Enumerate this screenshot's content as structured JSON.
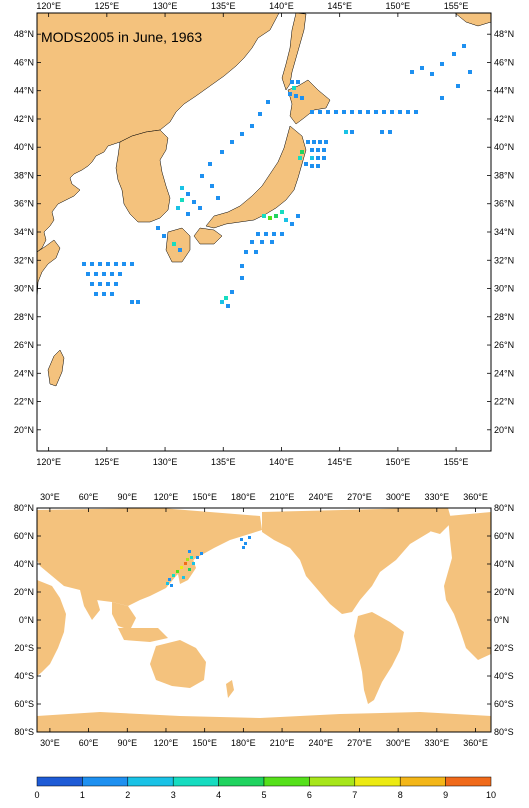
{
  "title": "MODS2005 in June, 1963",
  "colors": {
    "land": "#f4c27d",
    "ocean": "#ffffff",
    "frame": "#000000"
  },
  "regional_map": {
    "lon_range": [
      119,
      158
    ],
    "lat_range": [
      18.5,
      49.5
    ],
    "lon_ticks": [
      "120°E",
      "125°E",
      "130°E",
      "135°E",
      "140°E",
      "145°E",
      "150°E",
      "155°E"
    ],
    "lat_ticks": [
      "20°N",
      "22°N",
      "24°N",
      "26°N",
      "28°N",
      "30°N",
      "32°N",
      "34°N",
      "36°N",
      "38°N",
      "40°N",
      "42°N",
      "44°N",
      "46°N",
      "48°N"
    ]
  },
  "global_map": {
    "lon_range": [
      20,
      372
    ],
    "lat_range": [
      -80,
      80
    ],
    "lon_ticks": [
      "30°E",
      "60°E",
      "90°E",
      "120°E",
      "150°E",
      "180°E",
      "210°E",
      "240°E",
      "270°E",
      "300°E",
      "330°E",
      "360°E"
    ],
    "lat_ticks": [
      "80°S",
      "60°S",
      "40°S",
      "20°S",
      "0°N",
      "20°N",
      "40°N",
      "60°N",
      "80°N"
    ]
  },
  "colorbar": {
    "labels": [
      "0",
      "1",
      "2",
      "3",
      "4",
      "5",
      "6",
      "7",
      "8",
      "9",
      "10"
    ],
    "colors": [
      "#1e5bd6",
      "#1e90f0",
      "#19c2e6",
      "#16dcc0",
      "#1fd35f",
      "#55e01a",
      "#a7e61a",
      "#ecea12",
      "#f3b618",
      "#f06a1a"
    ]
  }
}
